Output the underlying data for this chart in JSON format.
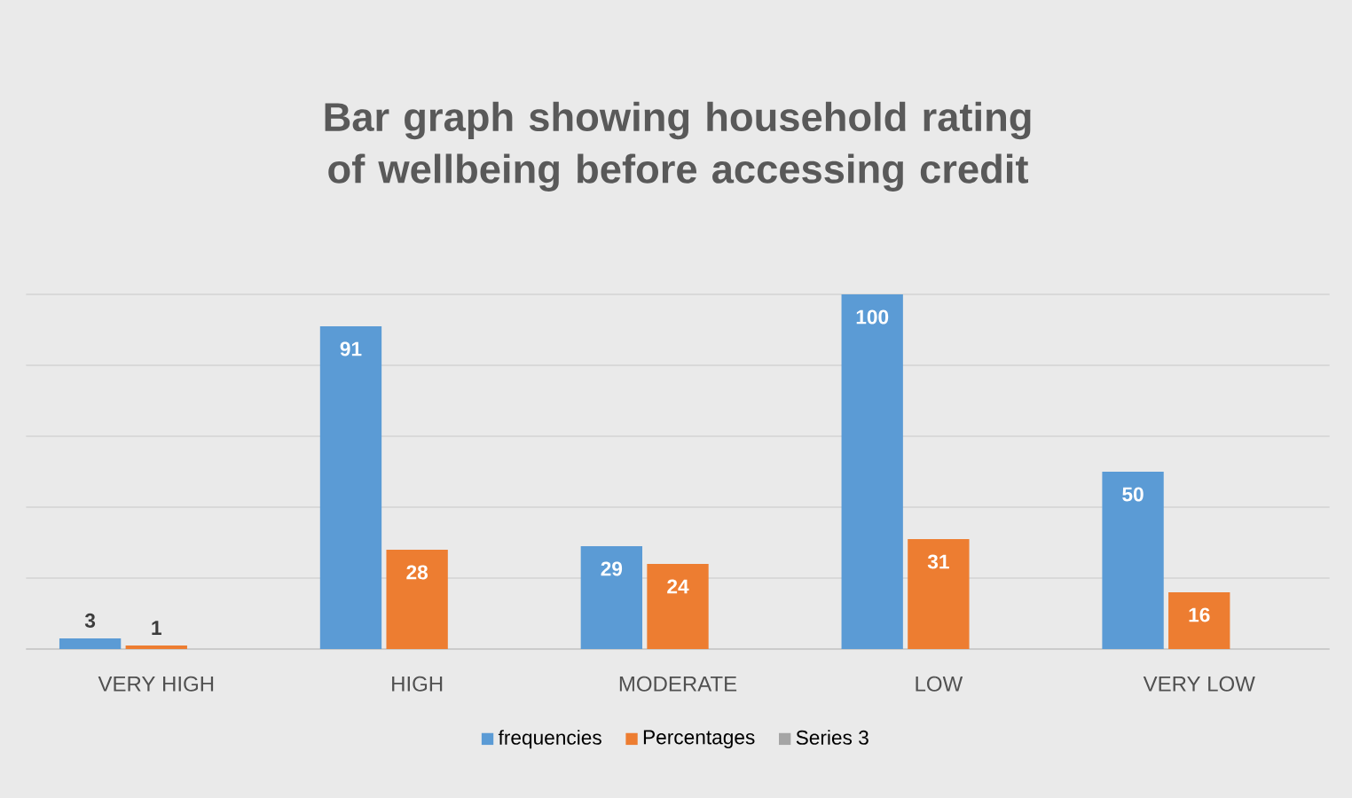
{
  "chart_data": {
    "type": "bar",
    "title": "Bar graph showing household rating of wellbeing before accessing credit",
    "categories": [
      "VERY HIGH",
      "HIGH",
      "MODERATE",
      "LOW",
      "VERY LOW"
    ],
    "series": [
      {
        "name": "frequencies",
        "color": "#5b9bd5",
        "values": [
          3,
          91,
          29,
          100,
          50
        ]
      },
      {
        "name": "Percentages",
        "color": "#ed7d31",
        "values": [
          1,
          28,
          24,
          31,
          16
        ]
      },
      {
        "name": "Series 3",
        "color": "#a5a5a5",
        "values": [
          null,
          null,
          null,
          null,
          null
        ]
      }
    ],
    "ylim": [
      0,
      100
    ],
    "yticks": [
      {
        "value": 0,
        "label": null
      },
      {
        "value": 20,
        "label": null
      },
      {
        "value": 40,
        "label": null
      },
      {
        "value": 60,
        "label": null
      },
      {
        "value": 80,
        "label": null
      },
      {
        "value": 100,
        "label": null
      }
    ],
    "tick_labels": "x",
    "grid": "y",
    "legend": "bottom",
    "data_labels": true
  }
}
